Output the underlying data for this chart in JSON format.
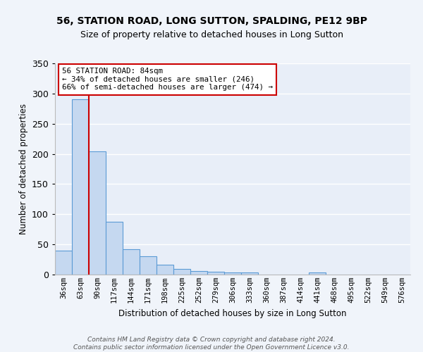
{
  "title": "56, STATION ROAD, LONG SUTTON, SPALDING, PE12 9BP",
  "subtitle": "Size of property relative to detached houses in Long Sutton",
  "xlabel": "Distribution of detached houses by size in Long Sutton",
  "ylabel": "Number of detached properties",
  "bar_color": "#c5d8f0",
  "bar_edge_color": "#5b9bd5",
  "bg_color": "#e8eef8",
  "grid_color": "#ffffff",
  "fig_bg_color": "#f0f4fa",
  "categories": [
    "36sqm",
    "63sqm",
    "90sqm",
    "117sqm",
    "144sqm",
    "171sqm",
    "198sqm",
    "225sqm",
    "252sqm",
    "279sqm",
    "306sqm",
    "333sqm",
    "360sqm",
    "387sqm",
    "414sqm",
    "441sqm",
    "468sqm",
    "495sqm",
    "522sqm",
    "549sqm",
    "576sqm"
  ],
  "values": [
    40,
    290,
    204,
    87,
    42,
    30,
    16,
    9,
    6,
    5,
    4,
    3,
    0,
    0,
    0,
    3,
    0,
    0,
    0,
    0,
    0
  ],
  "vline_x": 1.5,
  "vline_color": "#cc0000",
  "annotation_line1": "56 STATION ROAD: 84sqm",
  "annotation_line2": "← 34% of detached houses are smaller (246)",
  "annotation_line3": "66% of semi-detached houses are larger (474) →",
  "annotation_box_color": "#ffffff",
  "annotation_box_edge": "#cc0000",
  "footer": "Contains HM Land Registry data © Crown copyright and database right 2024.\nContains public sector information licensed under the Open Government Licence v3.0.",
  "ylim": [
    0,
    350
  ],
  "yticks": [
    0,
    50,
    100,
    150,
    200,
    250,
    300,
    350
  ]
}
